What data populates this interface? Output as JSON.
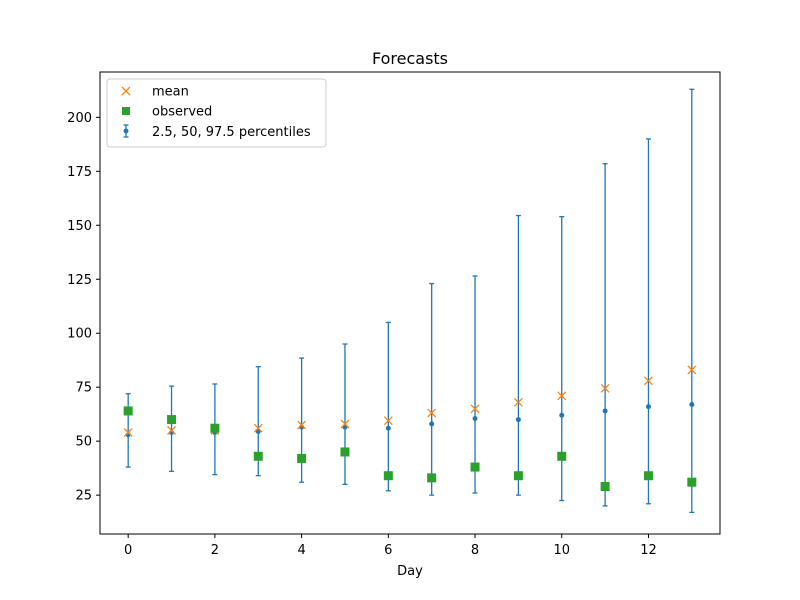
{
  "chart_data": {
    "type": "scatter",
    "title": "Forecasts",
    "xlabel": "Day",
    "ylabel": "",
    "xlim": [
      -0.65,
      13.65
    ],
    "ylim": [
      7,
      221
    ],
    "xticks": [
      0,
      2,
      4,
      6,
      8,
      10,
      12
    ],
    "yticks": [
      25,
      50,
      75,
      100,
      125,
      150,
      175,
      200
    ],
    "grid": false,
    "legend_position": "top-left",
    "x": [
      0,
      1,
      2,
      3,
      4,
      5,
      6,
      7,
      8,
      9,
      10,
      11,
      12,
      13
    ],
    "series": [
      {
        "name": "mean",
        "marker": "x",
        "color": "#ff7f0e",
        "values": [
          54,
          55,
          55,
          56,
          57.5,
          58,
          59.5,
          63,
          65,
          68,
          71,
          74.5,
          78,
          83
        ]
      },
      {
        "name": "observed",
        "marker": "square",
        "color": "#2ca02c",
        "values": [
          64,
          60,
          56,
          43,
          42,
          45,
          34,
          33,
          38,
          34,
          43,
          29,
          34,
          31
        ]
      },
      {
        "name": "2.5, 50, 97.5 percentiles",
        "marker": "errorbar",
        "color": "#1f77b4",
        "median": [
          53,
          54,
          54,
          54.5,
          56.5,
          56.5,
          56,
          58,
          60.5,
          60,
          62,
          64,
          66,
          67
        ],
        "lower": [
          38,
          36,
          34.5,
          34,
          31,
          30,
          27,
          25,
          26,
          25,
          22.5,
          20,
          21,
          17
        ],
        "upper": [
          72,
          75.5,
          76.5,
          84.5,
          88.5,
          95,
          105,
          123,
          126.5,
          154.5,
          154,
          178.5,
          190,
          213
        ]
      }
    ]
  }
}
